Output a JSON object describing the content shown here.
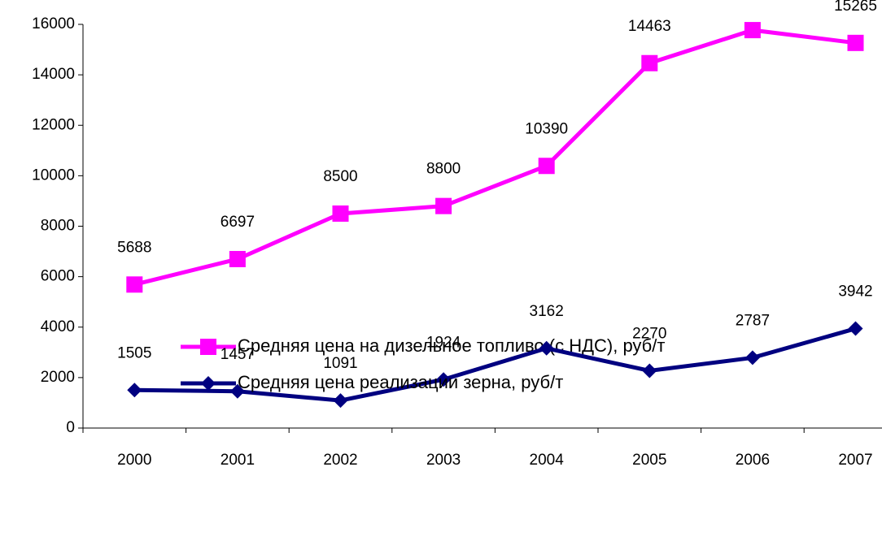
{
  "chart_data": {
    "type": "line",
    "categories": [
      "2000",
      "2001",
      "2002",
      "2003",
      "2004",
      "2005",
      "2006",
      "2007"
    ],
    "series": [
      {
        "name": "Средняя цена на дизельное топливо (с НДС), руб/т",
        "color": "#FF00FF",
        "marker": "square",
        "values": [
          5688,
          6697,
          8500,
          8800,
          10390,
          14463,
          15772,
          15265
        ]
      },
      {
        "name": "Средняя цена реализации зерна, руб/т",
        "color": "#000080",
        "marker": "diamond",
        "values": [
          1505,
          1457,
          1091,
          1924,
          3162,
          2270,
          2787,
          3942
        ]
      }
    ],
    "ylim": [
      0,
      16000
    ],
    "yticks": [
      0,
      2000,
      4000,
      6000,
      8000,
      10000,
      12000,
      14000,
      16000
    ],
    "grid": false
  }
}
